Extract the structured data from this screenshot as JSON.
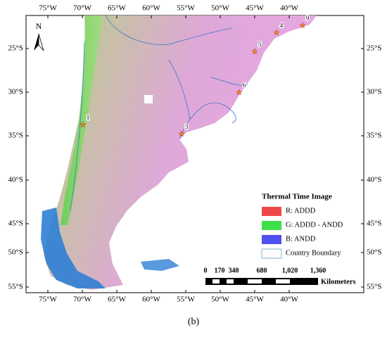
{
  "map": {
    "lon_labels": [
      "75°W",
      "70°W",
      "65°W",
      "60°W",
      "55°W",
      "50°W",
      "45°W",
      "40°W"
    ],
    "lat_labels": [
      "25°S",
      "30°S",
      "35°S",
      "40°S",
      "45°S",
      "50°S",
      "55°S"
    ],
    "north": "N",
    "sites": [
      "1",
      "3",
      "4",
      "5",
      "6",
      "9"
    ],
    "caption": "(b)"
  },
  "legend": {
    "title": "Thermal Time Image",
    "items": [
      "R: ADDD",
      "G: ADDD - ANDD",
      "B: ANDD",
      "Country Boundary"
    ]
  },
  "scale_bar": {
    "labels": [
      "0",
      "170",
      "340",
      "680",
      "1,020",
      "1,360"
    ],
    "unit": "Kilometers"
  }
}
